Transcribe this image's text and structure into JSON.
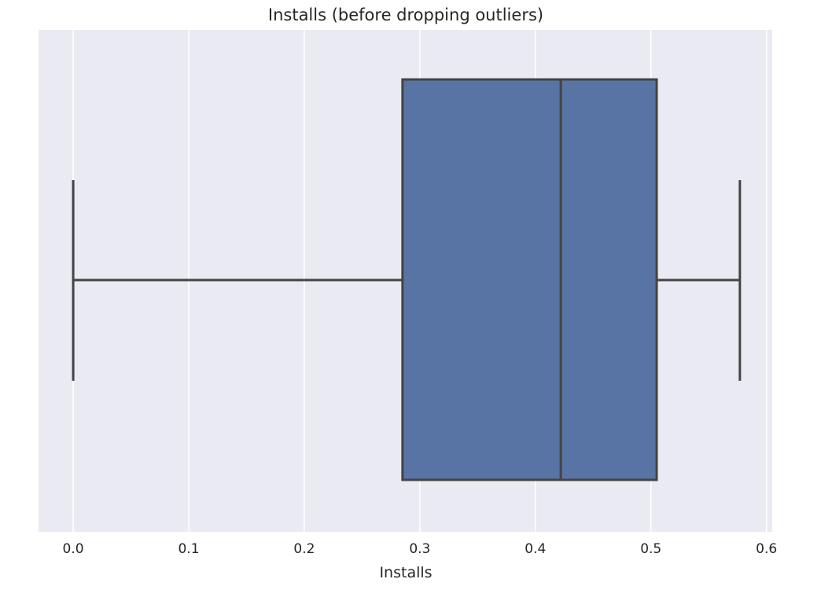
{
  "chart_data": {
    "type": "boxplot",
    "title": "Installs (before dropping outliers)",
    "xlabel": "Installs",
    "ylabel": "",
    "xlim": [
      -0.03,
      0.605
    ],
    "xticks": [
      0.0,
      0.1,
      0.2,
      0.3,
      0.4,
      0.5,
      0.6
    ],
    "xtick_labels": [
      "0.0",
      "0.1",
      "0.2",
      "0.3",
      "0.4",
      "0.5",
      "0.6"
    ],
    "orientation": "horizontal",
    "grid": true,
    "box": {
      "whisker_low": 0.0,
      "q1": 0.285,
      "median": 0.422,
      "q3": 0.505,
      "whisker_high": 0.577
    },
    "colors": {
      "background": "#eaeaf2",
      "grid": "#ffffff",
      "box_fill": "#5874a4",
      "line": "#444444",
      "text": "#262626"
    }
  }
}
